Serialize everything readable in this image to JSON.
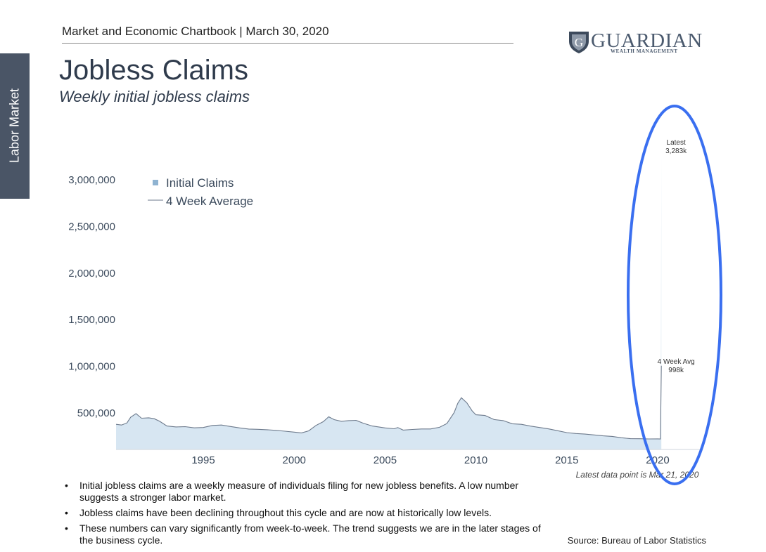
{
  "header": {
    "text": "Market and Economic Chartbook | March 30, 2020"
  },
  "side_tab": {
    "label": "Labor Market"
  },
  "logo": {
    "word": "GUARDIAN",
    "sub": "WEALTH MANAGEMENT",
    "colors": {
      "text": "#4b5a6e",
      "shield": "#3d4a5c"
    }
  },
  "page": {
    "title": "Jobless Claims",
    "subtitle": "Weekly initial jobless claims"
  },
  "chart_data": {
    "type": "area",
    "ylim": [
      100000,
      3400000
    ],
    "xlim": [
      1990.2,
      2022.4
    ],
    "y_ticks": [
      {
        "value": 500000,
        "label": "500,000"
      },
      {
        "value": 1000000,
        "label": "1,000,000"
      },
      {
        "value": 1500000,
        "label": "1,500,000"
      },
      {
        "value": 2000000,
        "label": "2,000,000"
      },
      {
        "value": 2500000,
        "label": "2,500,000"
      },
      {
        "value": 3000000,
        "label": "3,000,000"
      }
    ],
    "x_ticks": [
      {
        "value": 1995,
        "label": "1995"
      },
      {
        "value": 2000,
        "label": "2000"
      },
      {
        "value": 2005,
        "label": "2005"
      },
      {
        "value": 2010,
        "label": "2010"
      },
      {
        "value": 2015,
        "label": "2015"
      },
      {
        "value": 2020,
        "label": "2020"
      }
    ],
    "legend": {
      "position": "top-left",
      "items": [
        "Initial Claims",
        "4 Week Average"
      ]
    },
    "series": [
      {
        "name": "Initial Claims",
        "style": "area",
        "color": "#d7e6f2",
        "points": [
          [
            1990.2,
            370000
          ],
          [
            1990.5,
            360000
          ],
          [
            1990.8,
            390000
          ],
          [
            1991.0,
            450000
          ],
          [
            1991.3,
            490000
          ],
          [
            1991.6,
            430000
          ],
          [
            1992.0,
            440000
          ],
          [
            1992.3,
            430000
          ],
          [
            1992.6,
            400000
          ],
          [
            1993.0,
            350000
          ],
          [
            1993.5,
            340000
          ],
          [
            1994.0,
            345000
          ],
          [
            1994.5,
            330000
          ],
          [
            1995.0,
            335000
          ],
          [
            1995.5,
            360000
          ],
          [
            1996.0,
            365000
          ],
          [
            1996.5,
            345000
          ],
          [
            1997.0,
            330000
          ],
          [
            1997.5,
            318000
          ],
          [
            1998.0,
            315000
          ],
          [
            1998.5,
            312000
          ],
          [
            1999.0,
            305000
          ],
          [
            1999.5,
            295000
          ],
          [
            2000.0,
            285000
          ],
          [
            2000.4,
            275000
          ],
          [
            2000.8,
            300000
          ],
          [
            2001.2,
            360000
          ],
          [
            2001.6,
            400000
          ],
          [
            2001.9,
            460000
          ],
          [
            2002.2,
            420000
          ],
          [
            2002.6,
            400000
          ],
          [
            2003.0,
            410000
          ],
          [
            2003.4,
            415000
          ],
          [
            2003.8,
            380000
          ],
          [
            2004.3,
            350000
          ],
          [
            2005.0,
            330000
          ],
          [
            2005.5,
            320000
          ],
          [
            2005.7,
            340000
          ],
          [
            2006.0,
            305000
          ],
          [
            2006.5,
            315000
          ],
          [
            2007.0,
            320000
          ],
          [
            2007.5,
            320000
          ],
          [
            2008.0,
            340000
          ],
          [
            2008.4,
            380000
          ],
          [
            2008.8,
            500000
          ],
          [
            2009.0,
            600000
          ],
          [
            2009.2,
            660000
          ],
          [
            2009.5,
            600000
          ],
          [
            2009.8,
            510000
          ],
          [
            2010.0,
            470000
          ],
          [
            2010.5,
            465000
          ],
          [
            2011.0,
            420000
          ],
          [
            2011.5,
            410000
          ],
          [
            2012.0,
            375000
          ],
          [
            2012.5,
            370000
          ],
          [
            2013.0,
            350000
          ],
          [
            2013.5,
            335000
          ],
          [
            2014.0,
            320000
          ],
          [
            2014.5,
            300000
          ],
          [
            2015.0,
            280000
          ],
          [
            2015.5,
            270000
          ],
          [
            2016.0,
            265000
          ],
          [
            2016.5,
            255000
          ],
          [
            2017.0,
            245000
          ],
          [
            2017.5,
            240000
          ],
          [
            2018.0,
            225000
          ],
          [
            2018.5,
            215000
          ],
          [
            2019.0,
            215000
          ],
          [
            2019.5,
            212000
          ],
          [
            2020.0,
            215000
          ],
          [
            2020.15,
            211000
          ],
          [
            2020.17,
            282000
          ],
          [
            2020.2,
            3283000
          ],
          [
            2020.2,
            100000
          ]
        ]
      },
      {
        "name": "4 Week Average",
        "style": "line",
        "color": "#6d7a8c",
        "points": [
          [
            1990.2,
            370000
          ],
          [
            1990.5,
            362000
          ],
          [
            1990.8,
            385000
          ],
          [
            1991.0,
            445000
          ],
          [
            1991.3,
            485000
          ],
          [
            1991.6,
            435000
          ],
          [
            1992.0,
            440000
          ],
          [
            1992.3,
            430000
          ],
          [
            1992.6,
            402000
          ],
          [
            1993.0,
            352000
          ],
          [
            1993.5,
            342000
          ],
          [
            1994.0,
            345000
          ],
          [
            1994.5,
            332000
          ],
          [
            1995.0,
            336000
          ],
          [
            1995.5,
            358000
          ],
          [
            1996.0,
            362000
          ],
          [
            1996.5,
            346000
          ],
          [
            1997.0,
            331000
          ],
          [
            1997.5,
            319000
          ],
          [
            1998.0,
            316000
          ],
          [
            1998.5,
            312000
          ],
          [
            1999.0,
            305000
          ],
          [
            1999.5,
            296000
          ],
          [
            2000.0,
            286000
          ],
          [
            2000.4,
            278000
          ],
          [
            2000.8,
            300000
          ],
          [
            2001.2,
            358000
          ],
          [
            2001.6,
            398000
          ],
          [
            2001.9,
            450000
          ],
          [
            2002.2,
            420000
          ],
          [
            2002.6,
            402000
          ],
          [
            2003.0,
            410000
          ],
          [
            2003.4,
            413000
          ],
          [
            2003.8,
            382000
          ],
          [
            2004.3,
            352000
          ],
          [
            2005.0,
            331000
          ],
          [
            2005.5,
            322000
          ],
          [
            2005.7,
            335000
          ],
          [
            2006.0,
            308000
          ],
          [
            2006.5,
            315000
          ],
          [
            2007.0,
            320000
          ],
          [
            2007.5,
            320000
          ],
          [
            2008.0,
            338000
          ],
          [
            2008.4,
            378000
          ],
          [
            2008.8,
            495000
          ],
          [
            2009.0,
            595000
          ],
          [
            2009.2,
            655000
          ],
          [
            2009.5,
            600000
          ],
          [
            2009.8,
            512000
          ],
          [
            2010.0,
            472000
          ],
          [
            2010.5,
            465000
          ],
          [
            2011.0,
            421000
          ],
          [
            2011.5,
            410000
          ],
          [
            2012.0,
            376000
          ],
          [
            2012.5,
            370000
          ],
          [
            2013.0,
            351000
          ],
          [
            2013.5,
            336000
          ],
          [
            2014.0,
            321000
          ],
          [
            2014.5,
            301000
          ],
          [
            2015.0,
            281000
          ],
          [
            2015.5,
            271000
          ],
          [
            2016.0,
            265000
          ],
          [
            2016.5,
            256000
          ],
          [
            2017.0,
            246000
          ],
          [
            2017.5,
            240000
          ],
          [
            2018.0,
            226000
          ],
          [
            2018.5,
            216000
          ],
          [
            2019.0,
            215000
          ],
          [
            2019.5,
            213000
          ],
          [
            2020.0,
            214000
          ],
          [
            2020.15,
            212000
          ],
          [
            2020.2,
            998000
          ]
        ]
      }
    ],
    "annotations": [
      {
        "id": "latest",
        "x": 2020.2,
        "y": 3283000,
        "lines": [
          "Latest",
          "3,283k"
        ]
      },
      {
        "id": "avg",
        "x": 2020.2,
        "y": 998000,
        "lines": [
          "4 Week Avg",
          "998k"
        ]
      }
    ],
    "note": "Latest data point is Mar 21, 2020",
    "highlight": {
      "shape": "ellipse",
      "color": "#3a6ff0",
      "around": "2020 spike"
    }
  },
  "bullets": [
    "Initial jobless claims are a weekly measure of individuals filing for new jobless benefits. A low number suggests a stronger labor market.",
    "Jobless claims have been declining throughout this cycle and are now at historically low levels.",
    "These numbers can vary significantly from week-to-week. The trend suggests we are in the later stages of the business cycle."
  ],
  "source": "Source: Bureau of Labor Statistics"
}
